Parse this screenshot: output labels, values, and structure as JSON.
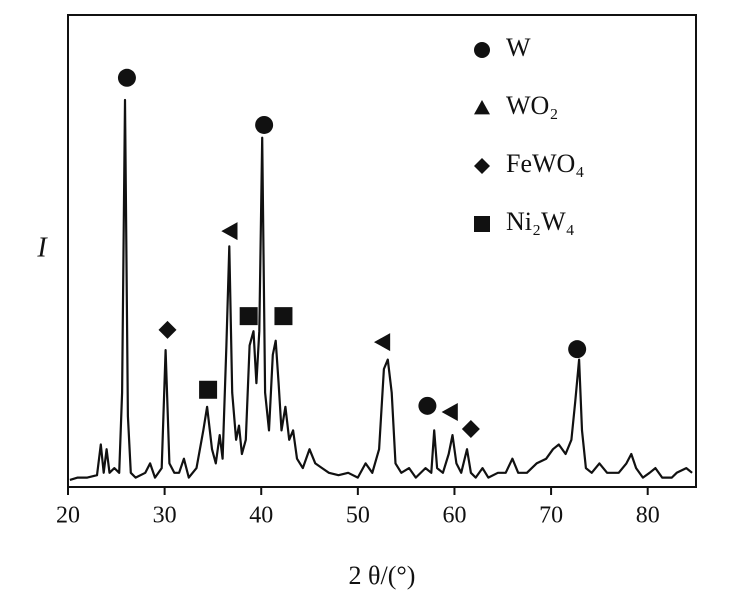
{
  "chart_data": {
    "type": "line",
    "xlabel": "2 θ/(°)",
    "ylabel": "I",
    "xlim": [
      20,
      85
    ],
    "ylim": [
      0,
      100
    ],
    "xticks": [
      20,
      30,
      40,
      50,
      60,
      70,
      80
    ],
    "color": "#111111",
    "series": [
      {
        "color": "#111111",
        "x": [
          20.2,
          21,
          22,
          23,
          23.4,
          23.7,
          24,
          24.3,
          24.8,
          25.3,
          25.6,
          25.9,
          26.2,
          26.5,
          27,
          28,
          28.5,
          29,
          29.7,
          30.1,
          30.5,
          31,
          31.5,
          32,
          32.5,
          33.3,
          34,
          34.4,
          34.9,
          35.3,
          35.7,
          36,
          36.4,
          36.7,
          37,
          37.4,
          37.7,
          38,
          38.4,
          38.8,
          39.2,
          39.5,
          39.8,
          40.1,
          40.4,
          40.8,
          41.2,
          41.5,
          41.8,
          42.1,
          42.5,
          42.9,
          43.3,
          43.7,
          44.3,
          45,
          45.6,
          46.3,
          47,
          48,
          49,
          50,
          50.8,
          51.5,
          52.2,
          52.7,
          53.1,
          53.5,
          53.9,
          54.5,
          55.3,
          56,
          57,
          57.6,
          57.9,
          58.2,
          58.8,
          59.4,
          59.8,
          60.2,
          60.7,
          61.3,
          61.7,
          62.2,
          62.9,
          63.5,
          64.5,
          65.3,
          66,
          66.6,
          67.5,
          68.5,
          69.5,
          70.2,
          70.8,
          71.5,
          72.1,
          72.5,
          72.9,
          73.2,
          73.6,
          74.2,
          75,
          75.8,
          77,
          77.8,
          78.3,
          78.8,
          79.5,
          80.2,
          80.8,
          81.5,
          82.5,
          83,
          84,
          84.6
        ],
        "values": [
          1.5,
          2,
          2,
          2.5,
          9,
          3,
          8,
          3,
          4,
          3,
          20,
          82,
          15,
          3,
          2,
          3,
          5,
          2,
          4,
          29,
          5,
          3,
          3,
          6,
          2,
          4,
          12,
          17,
          8,
          5,
          11,
          6,
          30,
          51,
          20,
          10,
          13,
          7,
          10,
          30,
          33,
          22,
          33,
          74,
          20,
          12,
          28,
          31,
          22,
          12,
          17,
          10,
          12,
          6,
          4,
          8,
          5,
          4,
          3,
          2.5,
          3,
          2,
          5,
          3,
          8,
          25,
          27,
          20,
          5,
          3,
          4,
          2,
          4,
          3,
          12,
          4,
          3,
          7,
          11,
          5,
          3,
          8,
          3,
          2,
          4,
          2,
          3,
          3,
          6,
          3,
          3,
          5,
          6,
          8,
          9,
          7,
          10,
          18,
          27,
          12,
          4,
          3,
          5,
          3,
          3,
          5,
          7,
          4,
          2,
          3,
          4,
          2,
          2,
          3,
          4,
          3
        ]
      }
    ],
    "phases": [
      {
        "name": "W",
        "shape": "circle",
        "legend_shape": "circle",
        "x": [
          26.1,
          40.3,
          57.2,
          72.7
        ],
        "values": [
          86.7,
          76.7,
          17.2,
          29.2
        ]
      },
      {
        "name": "WO₂",
        "shape": "triangle-left",
        "legend_shape": "triangle-up",
        "x": [
          36.8,
          52.6,
          59.6
        ],
        "values": [
          54.2,
          30.7,
          15.9
        ]
      },
      {
        "name": "FeWO₄",
        "shape": "diamond",
        "legend_shape": "diamond",
        "x": [
          30.3,
          61.7
        ],
        "values": [
          33.3,
          12.3
        ]
      },
      {
        "name": "Ni₂W₄",
        "shape": "square",
        "legend_shape": "square",
        "x": [
          34.5,
          38.7,
          42.3
        ],
        "values": [
          20.6,
          36.2,
          36.2
        ]
      }
    ]
  }
}
